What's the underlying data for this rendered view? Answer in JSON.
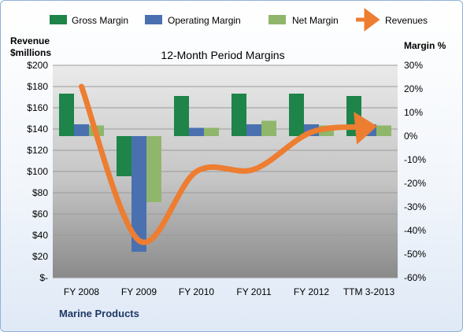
{
  "chart_data": {
    "type": "bar",
    "title": "12-Month Period Margins",
    "left_axis_label": [
      "Revenue",
      "$millions"
    ],
    "right_axis_label": "Margin %",
    "footer": "Marine Products",
    "categories": [
      "FY 2008",
      "FY 2009",
      "FY 2010",
      "FY 2011",
      "FY 2012",
      "TTM 3-2013"
    ],
    "left_ticks": [
      "$-",
      "$20",
      "$40",
      "$60",
      "$80",
      "$100",
      "$120",
      "$140",
      "$160",
      "$180",
      "$200"
    ],
    "right_ticks": [
      "-60%",
      "-50%",
      "-40%",
      "-30%",
      "-20%",
      "-10%",
      "0%",
      "10%",
      "20%",
      "30%"
    ],
    "left_ylim": [
      0,
      200
    ],
    "right_ylim": [
      -60,
      30
    ],
    "grid": true,
    "legend_position": "top",
    "series": [
      {
        "name": "Gross Margin",
        "axis": "right",
        "color": "#1e8449",
        "values": [
          18,
          -17,
          17,
          18,
          18,
          17
        ]
      },
      {
        "name": "Operating Margin",
        "axis": "right",
        "color": "#4a70b0",
        "values": [
          5,
          -49,
          3.5,
          5,
          5,
          5
        ]
      },
      {
        "name": "Net Margin",
        "axis": "right",
        "color": "#8fb66a",
        "values": [
          4.5,
          -28,
          3.5,
          6.5,
          4.5,
          4.5
        ]
      }
    ],
    "line_series": {
      "name": "Revenues",
      "axis": "left",
      "color": "#ed7d31",
      "values": [
        180,
        35,
        100,
        102,
        137,
        142
      ]
    }
  }
}
